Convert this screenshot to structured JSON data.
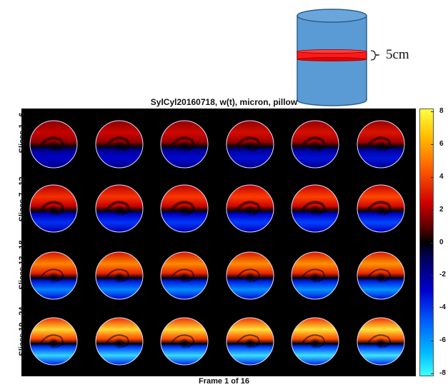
{
  "diagram": {
    "dimension_label": "5cm",
    "title": "SylCyl20160718, w(t), micron, pillow",
    "frame_label": "Frame 1 of 16",
    "row_labels": [
      "Slices  1 - 6",
      "Slices  7 - 12",
      "Slices 13 - 18",
      "Slices 19 - 24"
    ],
    "colorbar_ticks": [
      "8",
      "6",
      "4",
      "2",
      "0",
      "-2",
      "-4",
      "-6",
      "-8"
    ],
    "colors": {
      "cylinder_fill": "#5b9bd5",
      "cylinder_stroke": "#2e5f8a",
      "band": "#ff1a1a",
      "panel_bg": "#000000"
    }
  },
  "chart_data": {
    "type": "heatmap",
    "title": "SylCyl20160718, w(t), micron, pillow",
    "grid": {
      "rows": 4,
      "cols": 6
    },
    "slices": {
      "rows": [
        [
          1,
          6
        ],
        [
          7,
          12
        ],
        [
          13,
          18
        ],
        [
          19,
          24
        ]
      ]
    },
    "colorbar_range": [
      -8,
      8
    ],
    "colorbar_ticks": [
      8,
      6,
      4,
      2,
      0,
      -2,
      -4,
      -6,
      -8
    ],
    "row_intensity": [
      0.25,
      0.45,
      0.7,
      0.95
    ],
    "frame": {
      "current": 1,
      "total": 16
    }
  }
}
